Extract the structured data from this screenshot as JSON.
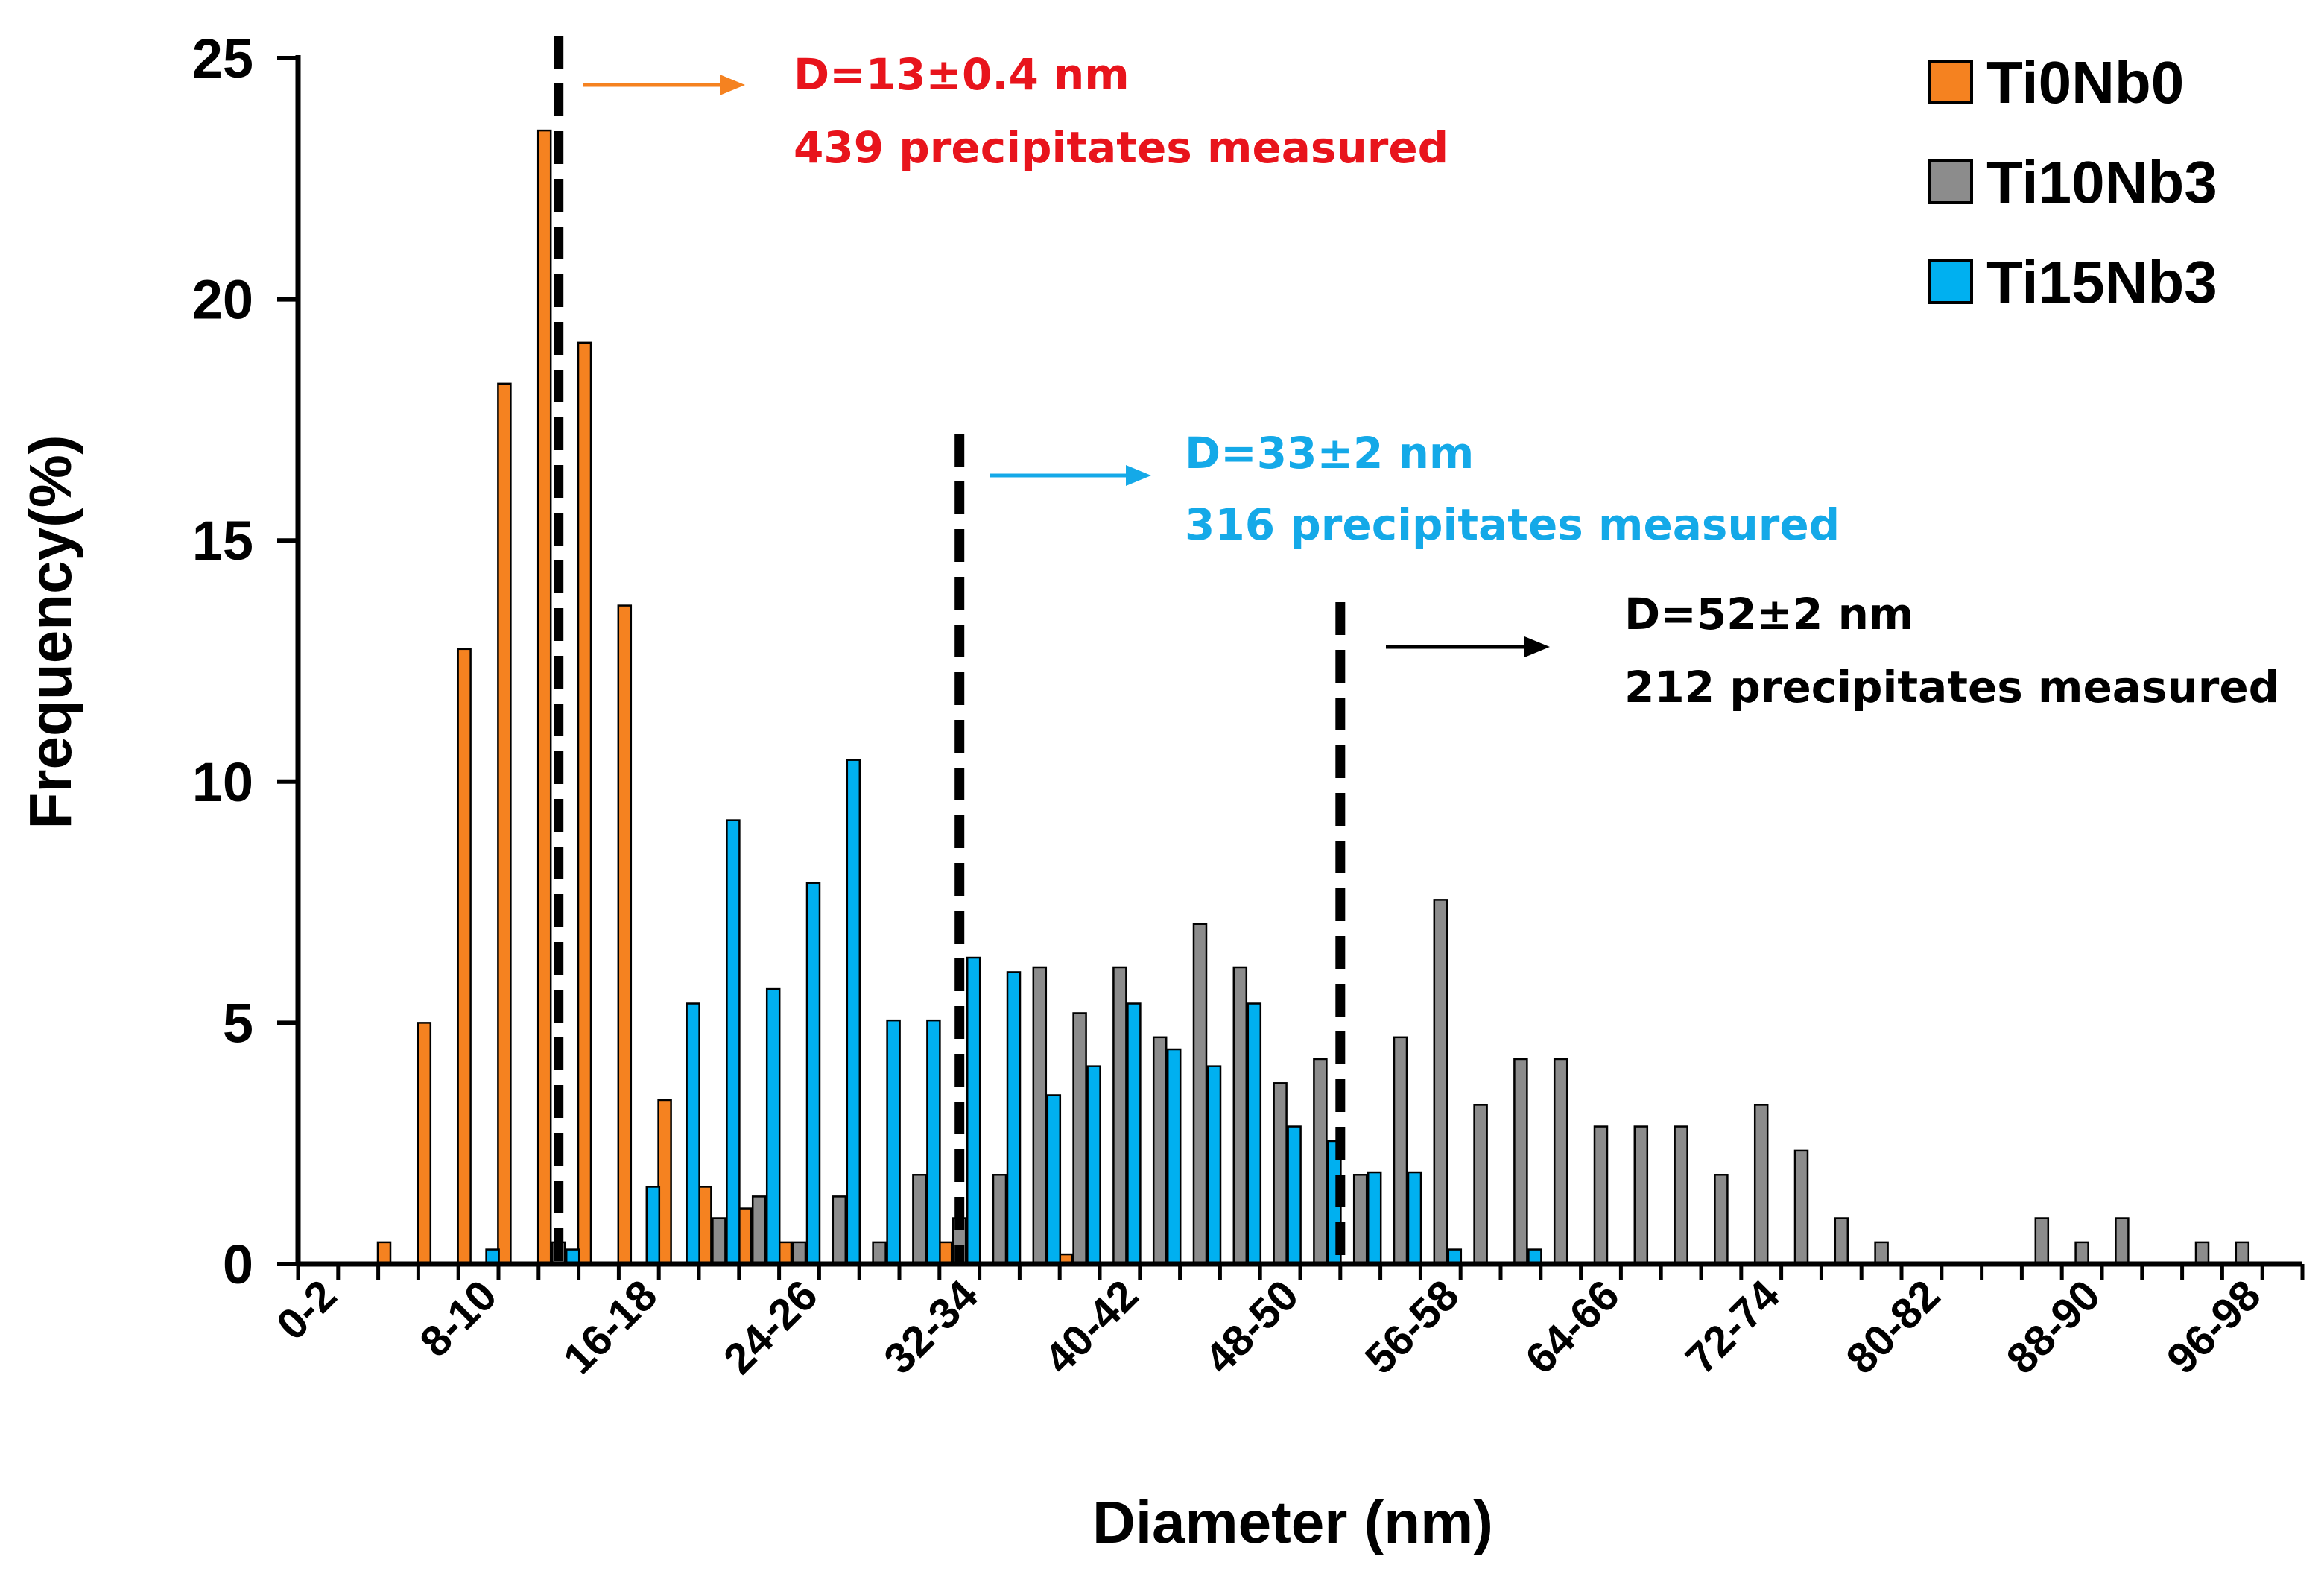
{
  "chart_data": {
    "type": "bar",
    "title": "",
    "xlabel": "Diameter (nm)",
    "ylabel": "Frequency(%)",
    "ylim": [
      0,
      25
    ],
    "yticks": [
      "0",
      "5",
      "10",
      "15",
      "20",
      "25"
    ],
    "categories": [
      "0-2",
      "2-4",
      "4-6",
      "6-8",
      "8-10",
      "10-12",
      "12-14",
      "14-16",
      "16-18",
      "18-20",
      "20-22",
      "22-24",
      "24-26",
      "26-28",
      "28-30",
      "30-32",
      "32-34",
      "34-36",
      "36-38",
      "38-40",
      "40-42",
      "42-44",
      "44-46",
      "46-48",
      "48-50",
      "50-52",
      "52-54",
      "54-56",
      "56-58",
      "58-60",
      "60-62",
      "62-64",
      "64-66",
      "66-68",
      "68-70",
      "70-72",
      "72-74",
      "74-76",
      "76-78",
      "78-80",
      "80-82",
      "82-84",
      "84-86",
      "86-88",
      "88-90",
      "90-92",
      "92-94",
      "94-96",
      "96-98",
      "98-100"
    ],
    "visible_category_labels": [
      "0-2",
      "8-10",
      "16-18",
      "24-26",
      "32-34",
      "40-42",
      "48-50",
      "56-58",
      "64-66",
      "72-74",
      "80-82",
      "88-90",
      "96-98"
    ],
    "series": [
      {
        "name": "Ti0Nb0",
        "color": "#F58220",
        "values": [
          0,
          0,
          0.45,
          5.0,
          12.75,
          18.25,
          23.5,
          19.1,
          13.65,
          3.4,
          1.6,
          1.15,
          0.45,
          0,
          0,
          0,
          0.45,
          0,
          0,
          0.2,
          0,
          0,
          0,
          0,
          0,
          0,
          0,
          0,
          0,
          0,
          0,
          0,
          0,
          0,
          0,
          0,
          0,
          0,
          0,
          0,
          0,
          0,
          0,
          0,
          0,
          0,
          0,
          0,
          0,
          0
        ]
      },
      {
        "name": "Ti10Nb3",
        "color": "#8C8C8C",
        "values": [
          0,
          0,
          0,
          0,
          0,
          0,
          0.45,
          0,
          0,
          0,
          0.95,
          1.4,
          0.45,
          1.4,
          0.45,
          1.85,
          0.95,
          1.85,
          6.15,
          5.2,
          6.15,
          4.7,
          7.05,
          6.15,
          3.75,
          4.25,
          1.85,
          4.7,
          7.55,
          3.3,
          4.25,
          4.25,
          2.85,
          2.85,
          2.85,
          1.85,
          3.3,
          2.35,
          0.95,
          0.45,
          0,
          0,
          0,
          0.95,
          0.45,
          0.95,
          0,
          0.45,
          0.45,
          0
        ]
      },
      {
        "name": "Ti15Nb3",
        "color": "#00B0F0",
        "values": [
          0,
          0,
          0,
          0,
          0.3,
          0,
          0.3,
          0,
          1.6,
          5.4,
          9.2,
          5.7,
          7.9,
          10.45,
          5.05,
          5.05,
          6.35,
          6.05,
          3.5,
          4.1,
          5.4,
          4.45,
          4.1,
          5.4,
          2.85,
          2.55,
          1.9,
          1.9,
          0.3,
          0,
          0.3,
          0,
          0,
          0,
          0,
          0,
          0,
          0,
          0,
          0,
          0,
          0,
          0,
          0,
          0,
          0,
          0,
          0,
          0,
          0
        ]
      }
    ],
    "reference_lines": [
      {
        "x_value": 13,
        "style": "dashed",
        "color": "#000000"
      },
      {
        "x_value": 33,
        "style": "dashed",
        "color": "#000000"
      },
      {
        "x_value": 52,
        "style": "dashed",
        "color": "#000000"
      }
    ],
    "annotations": [
      {
        "line1": "D=13±0.4 nm",
        "line2": "439 precipitates measured",
        "color": "#E8141C",
        "arrow_color": "#F58220"
      },
      {
        "line1": "D=33±2 nm",
        "line2": "316 precipitates measured",
        "color": "#14A9E8",
        "arrow_color": "#14A9E8"
      },
      {
        "line1": "D=52±2 nm",
        "line2": "212 precipitates measured",
        "color": "#000000",
        "arrow_color": "#000000"
      }
    ],
    "legend_position": "top-right",
    "grid": false
  }
}
